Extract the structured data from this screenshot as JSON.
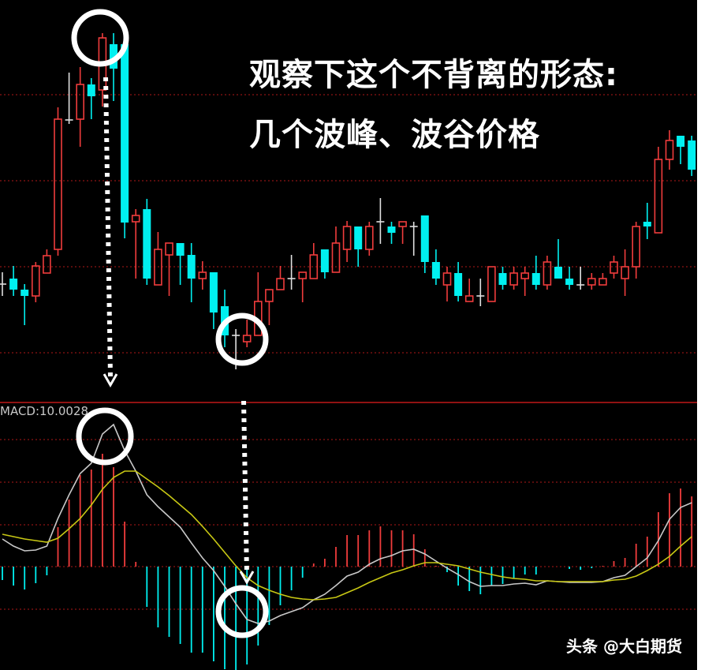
{
  "annotation": {
    "line1": "观察下这个不背离的形态:",
    "line2": "几个波峰、波谷价格"
  },
  "watermark": "头条 @大白期货",
  "colors": {
    "up": "#f03c3c",
    "down": "#00f0f0",
    "doji": "#e0e0e0",
    "dif": "#c8c8c8",
    "dea": "#c8c814",
    "grid": "#b01818",
    "background": "#000000",
    "marker": "#ffffff"
  },
  "chart_data": [
    {
      "type": "candlestick",
      "title": "",
      "grid": true,
      "note": "",
      "ohlc": [
        [
          140,
          155,
          125,
          140
        ],
        [
          147,
          163,
          125,
          133
        ],
        [
          133,
          140,
          88,
          125
        ],
        [
          125,
          168,
          117,
          163
        ],
        [
          154,
          184,
          154,
          176
        ],
        [
          184,
          364,
          176,
          349
        ],
        [
          348,
          408,
          343,
          348
        ],
        [
          349,
          415,
          314,
          393
        ],
        [
          393,
          401,
          349,
          378
        ],
        [
          386,
          458,
          365,
          452
        ],
        [
          444,
          458,
          372,
          413
        ],
        [
          444,
          456,
          198,
          218
        ],
        [
          219,
          235,
          147,
          227
        ],
        [
          235,
          248,
          139,
          147
        ],
        [
          139,
          206,
          139,
          184
        ],
        [
          177,
          192,
          125,
          192
        ],
        [
          192,
          192,
          139,
          176
        ],
        [
          177,
          192,
          117,
          147
        ],
        [
          147,
          169,
          133,
          155
        ],
        [
          155,
          155,
          83,
          104
        ],
        [
          112,
          133,
          60,
          75
        ],
        [
          75,
          83,
          32,
          75
        ],
        [
          67,
          95,
          60,
          75
        ],
        [
          75,
          155,
          75,
          118
        ],
        [
          118,
          133,
          88,
          133
        ],
        [
          133,
          163,
          133,
          147
        ],
        [
          147,
          177,
          133,
          147
        ],
        [
          147,
          155,
          117,
          155
        ],
        [
          147,
          192,
          147,
          177
        ],
        [
          184,
          184,
          147,
          155
        ],
        [
          155,
          213,
          155,
          192
        ],
        [
          184,
          220,
          168,
          213
        ],
        [
          213,
          213,
          162,
          184
        ],
        [
          184,
          219,
          176,
          213
        ],
        [
          219,
          249,
          191,
          219
        ],
        [
          213,
          219,
          191,
          205
        ],
        [
          213,
          219,
          191,
          219
        ],
        [
          213,
          219,
          176,
          213
        ],
        [
          227,
          227,
          154,
          168
        ],
        [
          168,
          184,
          139,
          147
        ],
        [
          139,
          162,
          118,
          154
        ],
        [
          154,
          168,
          118,
          125
        ],
        [
          118,
          147,
          118,
          125
        ],
        [
          125,
          147,
          112,
          125
        ],
        [
          118,
          162,
          118,
          162
        ],
        [
          154,
          162,
          133,
          139
        ],
        [
          139,
          162,
          133,
          154
        ],
        [
          147,
          162,
          125,
          154
        ],
        [
          154,
          176,
          133,
          139
        ],
        [
          139,
          176,
          133,
          168
        ],
        [
          162,
          197,
          147,
          147
        ],
        [
          147,
          162,
          133,
          139
        ],
        [
          139,
          162,
          133,
          139
        ],
        [
          139,
          154,
          133,
          147
        ],
        [
          139,
          154,
          139,
          147
        ],
        [
          154,
          176,
          147,
          168
        ],
        [
          147,
          184,
          125,
          162
        ],
        [
          162,
          219,
          147,
          213
        ],
        [
          219,
          243,
          197,
          213
        ],
        [
          205,
          314,
          205,
          298
        ],
        [
          298,
          335,
          285,
          322
        ],
        [
          328,
          328,
          292,
          314
        ],
        [
          322,
          328,
          277,
          285
        ]
      ],
      "highlights": [
        9,
        21
      ]
    },
    {
      "type": "bar+line",
      "label": "MACD:10.0028",
      "histogram": [
        -17,
        -24,
        -29,
        -21,
        -11,
        50,
        85,
        116,
        123,
        143,
        126,
        57,
        6,
        -51,
        -77,
        -89,
        -98,
        -109,
        -109,
        -120,
        -130,
        -131,
        -124,
        -100,
        -74,
        -49,
        -30,
        -14,
        4,
        10,
        25,
        40,
        40,
        46,
        51,
        46,
        46,
        41,
        22,
        1,
        -7,
        -24,
        -31,
        -35,
        -24,
        -22,
        -15,
        -10,
        -10,
        0,
        0,
        -3,
        -4,
        -2,
        1,
        7,
        11,
        29,
        38,
        69,
        93,
        99,
        89
      ],
      "series": [
        {
          "key": "dif",
          "values": [
            35,
            26,
            20,
            21,
            26,
            61,
            91,
            118,
            131,
            168,
            180,
            147,
            121,
            91,
            76,
            63,
            50,
            30,
            11,
            -5,
            -25,
            -47,
            -67,
            -72,
            -69,
            -62,
            -57,
            -52,
            -42,
            -35,
            -24,
            -12,
            -7,
            3,
            10,
            14,
            20,
            22,
            16,
            7,
            -2,
            -10,
            -19,
            -25,
            -24,
            -24,
            -22,
            -21,
            -23,
            -18,
            -19,
            -20,
            -20,
            -20,
            -19,
            -14,
            -11,
            0,
            11,
            33,
            60,
            75,
            81
          ]
        },
        {
          "key": "dea",
          "values": [
            41,
            38,
            35,
            33,
            31,
            36,
            48,
            61,
            78,
            98,
            113,
            121,
            121,
            111,
            101,
            90,
            78,
            66,
            51,
            35,
            18,
            1,
            -14,
            -24,
            -30,
            -35,
            -39,
            -41,
            -42,
            -41,
            -39,
            -33,
            -27,
            -20,
            -14,
            -8,
            -4,
            1,
            5,
            5,
            3,
            1,
            -3,
            -7,
            -10,
            -13,
            -15,
            -16,
            -18,
            -18,
            -19,
            -19,
            -19,
            -19,
            -19,
            -17,
            -16,
            -12,
            -5,
            3,
            13,
            26,
            38
          ]
        }
      ],
      "highlights": [
        10,
        22
      ]
    }
  ]
}
